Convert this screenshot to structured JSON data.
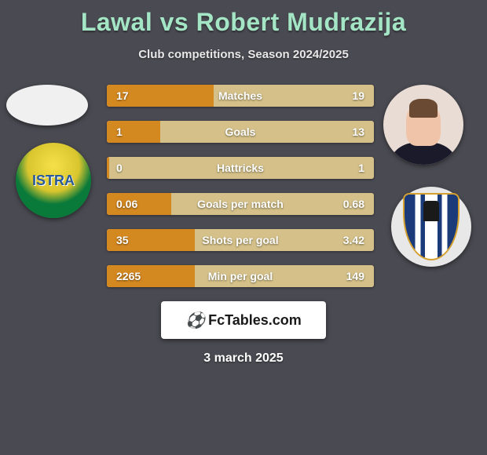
{
  "title": {
    "player1": "Lawal",
    "vs": "vs",
    "player2": "Robert Mudrazija",
    "color": "#a3e5c5"
  },
  "subtitle": "Club competitions, Season 2024/2025",
  "left": {
    "club_label": "ISTRA"
  },
  "stats": {
    "bar_fill_color": "#d48820",
    "bar_bg_color": "#d4c088",
    "rows": [
      {
        "label": "Matches",
        "left": "17",
        "right": "19",
        "fill_pct": 40
      },
      {
        "label": "Goals",
        "left": "1",
        "right": "13",
        "fill_pct": 20
      },
      {
        "label": "Hattricks",
        "left": "0",
        "right": "1",
        "fill_pct": 1
      },
      {
        "label": "Goals per match",
        "left": "0.06",
        "right": "0.68",
        "fill_pct": 24
      },
      {
        "label": "Shots per goal",
        "left": "35",
        "right": "3.42",
        "fill_pct": 33
      },
      {
        "label": "Min per goal",
        "left": "2265",
        "right": "149",
        "fill_pct": 33
      }
    ]
  },
  "footer": {
    "brand": "FcTables.com",
    "date": "3 march 2025"
  },
  "colors": {
    "background": "#4a4a52",
    "text": "#ffffff"
  }
}
